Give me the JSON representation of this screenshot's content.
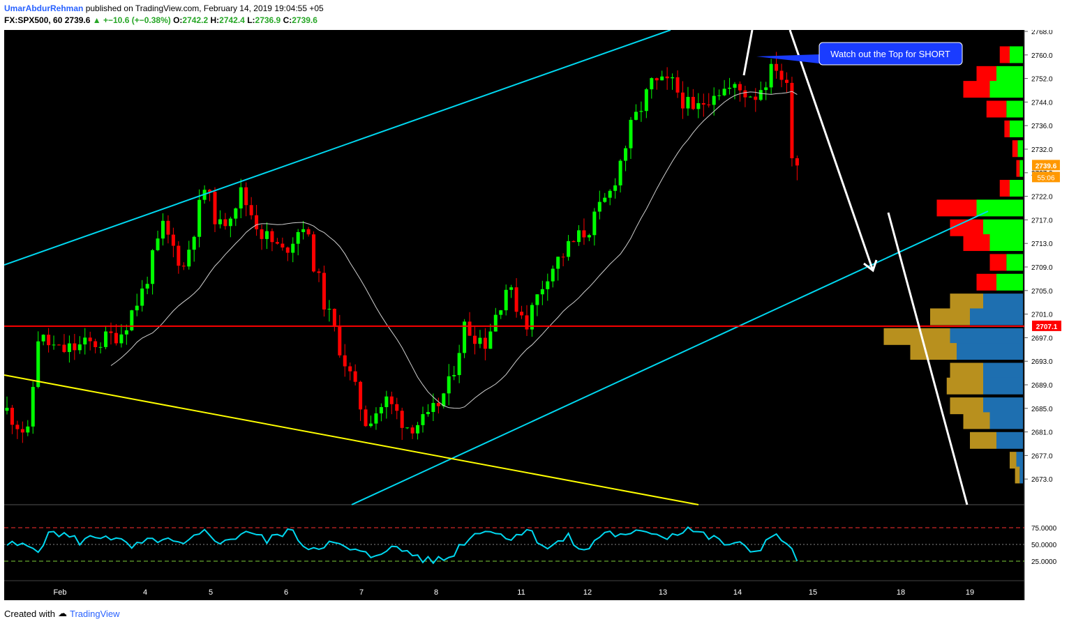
{
  "header": {
    "author": "UmarAbdurRehman",
    "published_text": "published on TradingView.com, February 14, 2019 19:04:55 +05",
    "symbol": "FX:SPX500, 60",
    "last_price": "2739.6",
    "change": "▲ +−10.6 (+−0.38%)",
    "o_label": "O:",
    "o_value": "2742.2",
    "h_label": "H:",
    "h_value": "2742.4",
    "l_label": "L:",
    "l_value": "2736.9",
    "c_label": "C:",
    "c_value": "2739.6"
  },
  "footer": {
    "created_with": "Created with",
    "brand": "TradingView"
  },
  "colors": {
    "up": "#00ff00",
    "down": "#ff0000",
    "channel": "#00d8f0",
    "trend": "#ffff00",
    "level": "#ff0000",
    "ma": "#d0d0d0",
    "rsi": "#00d8f0",
    "vol_up": "#1e6fb0",
    "vol_down": "#b8901e"
  },
  "chart_data": [
    {
      "type": "candlestick",
      "symbol": "FX:SPX500",
      "interval": "60",
      "ylim": [
        2671,
        2767
      ],
      "y_ticks": [
        "2768.0",
        "2760.0",
        "2752.0",
        "2744.0",
        "2736.0",
        "2732.0",
        "2727.0",
        "2722.0",
        "2717.0",
        "2713.0",
        "2709.0",
        "2705.0",
        "2701.0",
        "2697.0",
        "2693.0",
        "2689.0",
        "2685.0",
        "2681.0",
        "2677.0",
        "2673.0"
      ],
      "x_ticks": [
        "Feb",
        "4",
        "5",
        "6",
        "7",
        "8",
        "11",
        "12",
        "13",
        "14",
        "15",
        "18",
        "19"
      ],
      "price_label": "2739.6",
      "countdown_label": "55:06",
      "level_label": "2707.1",
      "level_value": 2707.1,
      "annotation": "Watch out the Top for SHORT",
      "price_path": [
        [
          0,
          2690
        ],
        [
          4,
          2685
        ],
        [
          6,
          2705
        ],
        [
          10,
          2702
        ],
        [
          14,
          2703
        ],
        [
          18,
          2704
        ],
        [
          22,
          2706
        ],
        [
          26,
          2714
        ],
        [
          30,
          2727
        ],
        [
          34,
          2719
        ],
        [
          38,
          2735
        ],
        [
          41,
          2727
        ],
        [
          45,
          2734
        ],
        [
          49,
          2726
        ],
        [
          53,
          2722
        ],
        [
          57,
          2728
        ],
        [
          61,
          2712
        ],
        [
          65,
          2700
        ],
        [
          69,
          2688
        ],
        [
          73,
          2692
        ],
        [
          77,
          2687
        ],
        [
          81,
          2688
        ],
        [
          85,
          2695
        ],
        [
          88,
          2707
        ],
        [
          92,
          2704
        ],
        [
          96,
          2715
        ],
        [
          100,
          2708
        ],
        [
          104,
          2718
        ],
        [
          108,
          2723
        ],
        [
          112,
          2727
        ],
        [
          116,
          2734
        ],
        [
          120,
          2747
        ],
        [
          124,
          2756
        ],
        [
          128,
          2756
        ],
        [
          132,
          2750
        ],
        [
          136,
          2755
        ],
        [
          140,
          2755
        ],
        [
          144,
          2754
        ],
        [
          148,
          2760
        ],
        [
          150,
          2755
        ],
        [
          151,
          2743
        ],
        [
          152,
          2739.6
        ]
      ],
      "volume_profile": [
        {
          "price": 2762,
          "up": 2,
          "down": 1.5
        },
        {
          "price": 2758,
          "up": 4,
          "down": 3
        },
        {
          "price": 2755,
          "up": 5,
          "down": 4
        },
        {
          "price": 2751,
          "up": 2.5,
          "down": 3
        },
        {
          "price": 2747,
          "up": 2,
          "down": 0.8
        },
        {
          "price": 2743,
          "up": 0.8,
          "down": 0.8
        },
        {
          "price": 2739,
          "up": 0.5,
          "down": 0.5
        },
        {
          "price": 2735,
          "up": 2,
          "down": 1.5
        },
        {
          "price": 2731,
          "up": 7,
          "down": 6
        },
        {
          "price": 2727,
          "up": 6,
          "down": 5
        },
        {
          "price": 2724,
          "up": 5,
          "down": 4
        },
        {
          "price": 2720,
          "up": 2.5,
          "down": 2.5
        },
        {
          "price": 2716,
          "up": 4,
          "down": 3
        },
        {
          "price": 2712,
          "up": 6,
          "down": 5
        },
        {
          "price": 2709,
          "up": 8,
          "down": 6
        },
        {
          "price": 2705,
          "up": 11,
          "down": 10
        },
        {
          "price": 2702,
          "up": 10,
          "down": 7
        },
        {
          "price": 2698,
          "up": 6,
          "down": 5
        },
        {
          "price": 2695,
          "up": 6,
          "down": 5.5
        },
        {
          "price": 2691,
          "up": 6,
          "down": 5
        },
        {
          "price": 2688,
          "up": 5,
          "down": 4
        },
        {
          "price": 2684,
          "up": 4,
          "down": 4
        },
        {
          "price": 2680,
          "up": 1,
          "down": 1
        },
        {
          "price": 2677,
          "up": 0.5,
          "down": 0.7
        }
      ]
    },
    {
      "type": "line",
      "name": "RSI",
      "ylim": [
        0,
        100
      ],
      "y_ticks": [
        "75.0000",
        "50.0000",
        "25.0000"
      ],
      "overbought": 75,
      "oversold": 25,
      "values": [
        {
          "x": 0,
          "y": 50
        },
        {
          "x": 6,
          "y": 45
        },
        {
          "x": 9,
          "y": 70
        },
        {
          "x": 14,
          "y": 55
        },
        {
          "x": 19,
          "y": 65
        },
        {
          "x": 24,
          "y": 45
        },
        {
          "x": 29,
          "y": 58
        },
        {
          "x": 34,
          "y": 48
        },
        {
          "x": 38,
          "y": 68
        },
        {
          "x": 42,
          "y": 52
        },
        {
          "x": 46,
          "y": 72
        },
        {
          "x": 50,
          "y": 55
        },
        {
          "x": 54,
          "y": 72
        },
        {
          "x": 58,
          "y": 45
        },
        {
          "x": 62,
          "y": 52
        },
        {
          "x": 66,
          "y": 42
        },
        {
          "x": 70,
          "y": 32
        },
        {
          "x": 73,
          "y": 45
        },
        {
          "x": 77,
          "y": 40
        },
        {
          "x": 81,
          "y": 25
        },
        {
          "x": 85,
          "y": 30
        },
        {
          "x": 88,
          "y": 55
        },
        {
          "x": 92,
          "y": 75
        },
        {
          "x": 96,
          "y": 60
        },
        {
          "x": 100,
          "y": 72
        },
        {
          "x": 104,
          "y": 45
        },
        {
          "x": 108,
          "y": 60
        },
        {
          "x": 111,
          "y": 38
        },
        {
          "x": 115,
          "y": 70
        },
        {
          "x": 119,
          "y": 60
        },
        {
          "x": 123,
          "y": 72
        },
        {
          "x": 127,
          "y": 62
        },
        {
          "x": 131,
          "y": 75
        },
        {
          "x": 134,
          "y": 64
        },
        {
          "x": 138,
          "y": 52
        },
        {
          "x": 141,
          "y": 48
        },
        {
          "x": 144,
          "y": 40
        },
        {
          "x": 147,
          "y": 62
        },
        {
          "x": 150,
          "y": 55
        },
        {
          "x": 152,
          "y": 25
        }
      ]
    }
  ]
}
